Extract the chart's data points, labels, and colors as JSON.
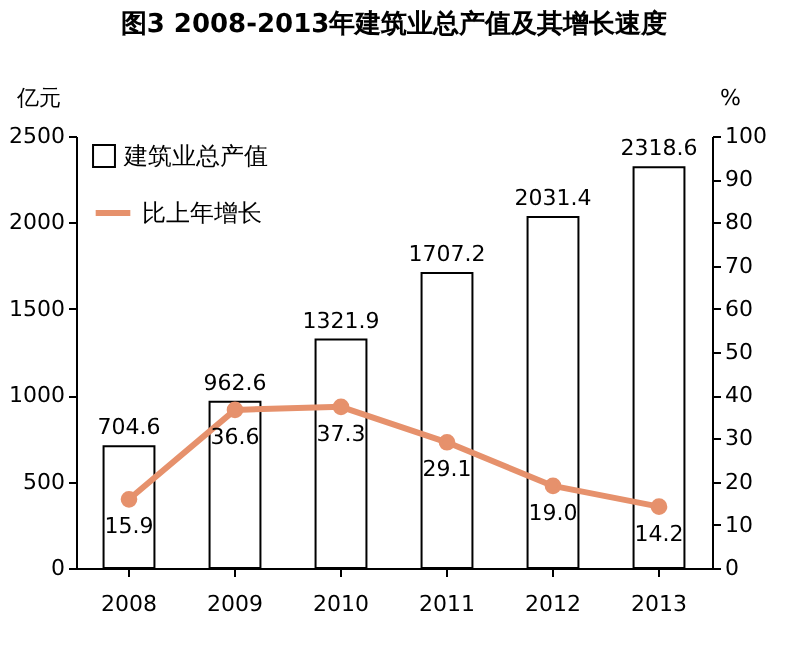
{
  "chart_data": {
    "type": "bar",
    "title": "图3  2008-2013年建筑业总产值及其增长速度",
    "ylabel": "亿元",
    "y2label": "%",
    "categories": [
      "2008",
      "2009",
      "2010",
      "2011",
      "2012",
      "2013"
    ],
    "series": [
      {
        "name": "建筑业总产值",
        "color": "#ffffff",
        "values": [
          704.6,
          962.6,
          1321.9,
          1707.2,
          2031.4,
          2318.6
        ],
        "value_labels": [
          "704.6",
          "962.6",
          "1321.9",
          "1707.2",
          "2031.4",
          "2318.6"
        ]
      },
      {
        "name": "比上年增长",
        "type": "line",
        "axis": "y2",
        "color": "#e6916c",
        "values": [
          15.9,
          36.6,
          37.3,
          29.1,
          19.0,
          14.2
        ],
        "value_labels": [
          "15.9",
          "36.6",
          "37.3",
          "29.1",
          "19.0",
          "14.2"
        ]
      }
    ],
    "ylim": [
      0,
      2500
    ],
    "yticks": [
      0,
      500,
      1000,
      1500,
      2000,
      2500
    ],
    "y2lim": [
      0,
      100
    ],
    "y2ticks": [
      0,
      10,
      20,
      30,
      40,
      50,
      60,
      70,
      80,
      90,
      100
    ],
    "legend": "top left",
    "marker": "circle",
    "grid": false
  }
}
